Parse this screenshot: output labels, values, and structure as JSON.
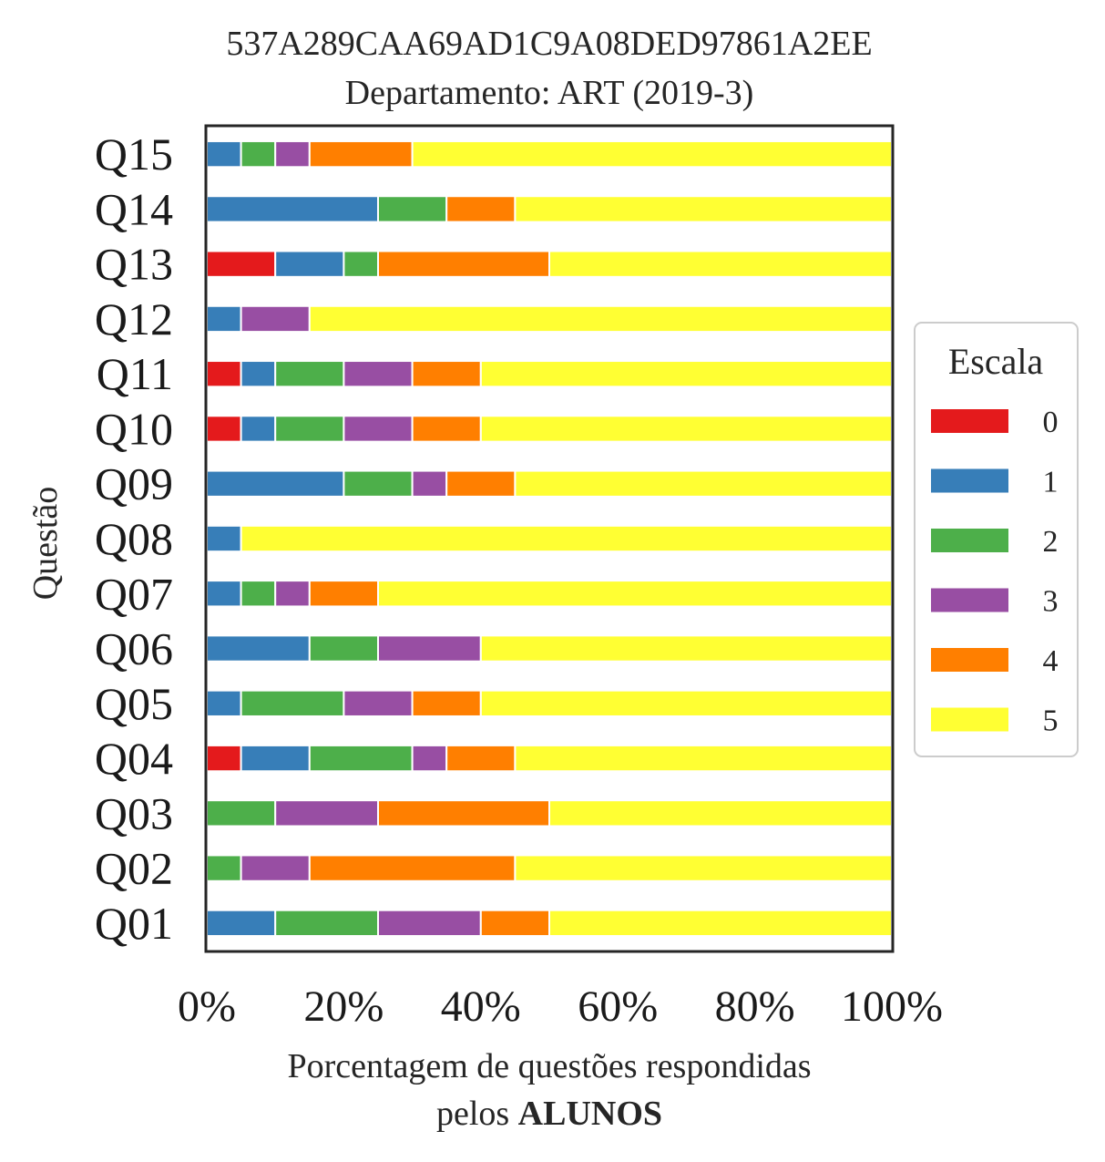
{
  "chart_data": {
    "type": "bar",
    "orientation": "horizontal",
    "stacked": true,
    "title": "537A289CAA69AD1C9A08DED97861A2EE",
    "subtitle": "Departamento: ART (2019-3)",
    "ylabel": "Questão",
    "xlabel_line1": "Porcentagem de questões respondidas",
    "xlabel_line2_prefix": "pelos ",
    "xlabel_line2_bold": "ALUNOS",
    "xlim": [
      0,
      100
    ],
    "xticks": [
      "0%",
      "20%",
      "40%",
      "60%",
      "80%",
      "100%"
    ],
    "categories": [
      "Q01",
      "Q02",
      "Q03",
      "Q04",
      "Q05",
      "Q06",
      "Q07",
      "Q08",
      "Q09",
      "Q10",
      "Q11",
      "Q12",
      "Q13",
      "Q14",
      "Q15"
    ],
    "legend_title": "Escala",
    "legend_position": "right",
    "series": [
      {
        "name": "0",
        "color": "#e41a1c",
        "values": [
          0,
          0,
          0,
          5,
          0,
          0,
          0,
          0,
          0,
          5,
          5,
          0,
          10,
          0,
          0
        ]
      },
      {
        "name": "1",
        "color": "#377eb8",
        "values": [
          10,
          0,
          0,
          10,
          5,
          15,
          5,
          5,
          20,
          5,
          5,
          5,
          10,
          25,
          5
        ]
      },
      {
        "name": "2",
        "color": "#4daf4a",
        "values": [
          15,
          5,
          10,
          15,
          15,
          10,
          5,
          0,
          10,
          10,
          10,
          0,
          5,
          10,
          5
        ]
      },
      {
        "name": "3",
        "color": "#984ea3",
        "values": [
          15,
          10,
          15,
          5,
          10,
          15,
          5,
          0,
          5,
          10,
          10,
          10,
          0,
          0,
          5
        ]
      },
      {
        "name": "4",
        "color": "#ff7f00",
        "values": [
          10,
          30,
          25,
          10,
          10,
          0,
          10,
          0,
          10,
          10,
          10,
          0,
          25,
          10,
          15
        ]
      },
      {
        "name": "5",
        "color": "#ffff33",
        "values": [
          50,
          55,
          50,
          55,
          60,
          60,
          75,
          95,
          55,
          60,
          60,
          85,
          50,
          55,
          70
        ]
      }
    ]
  }
}
